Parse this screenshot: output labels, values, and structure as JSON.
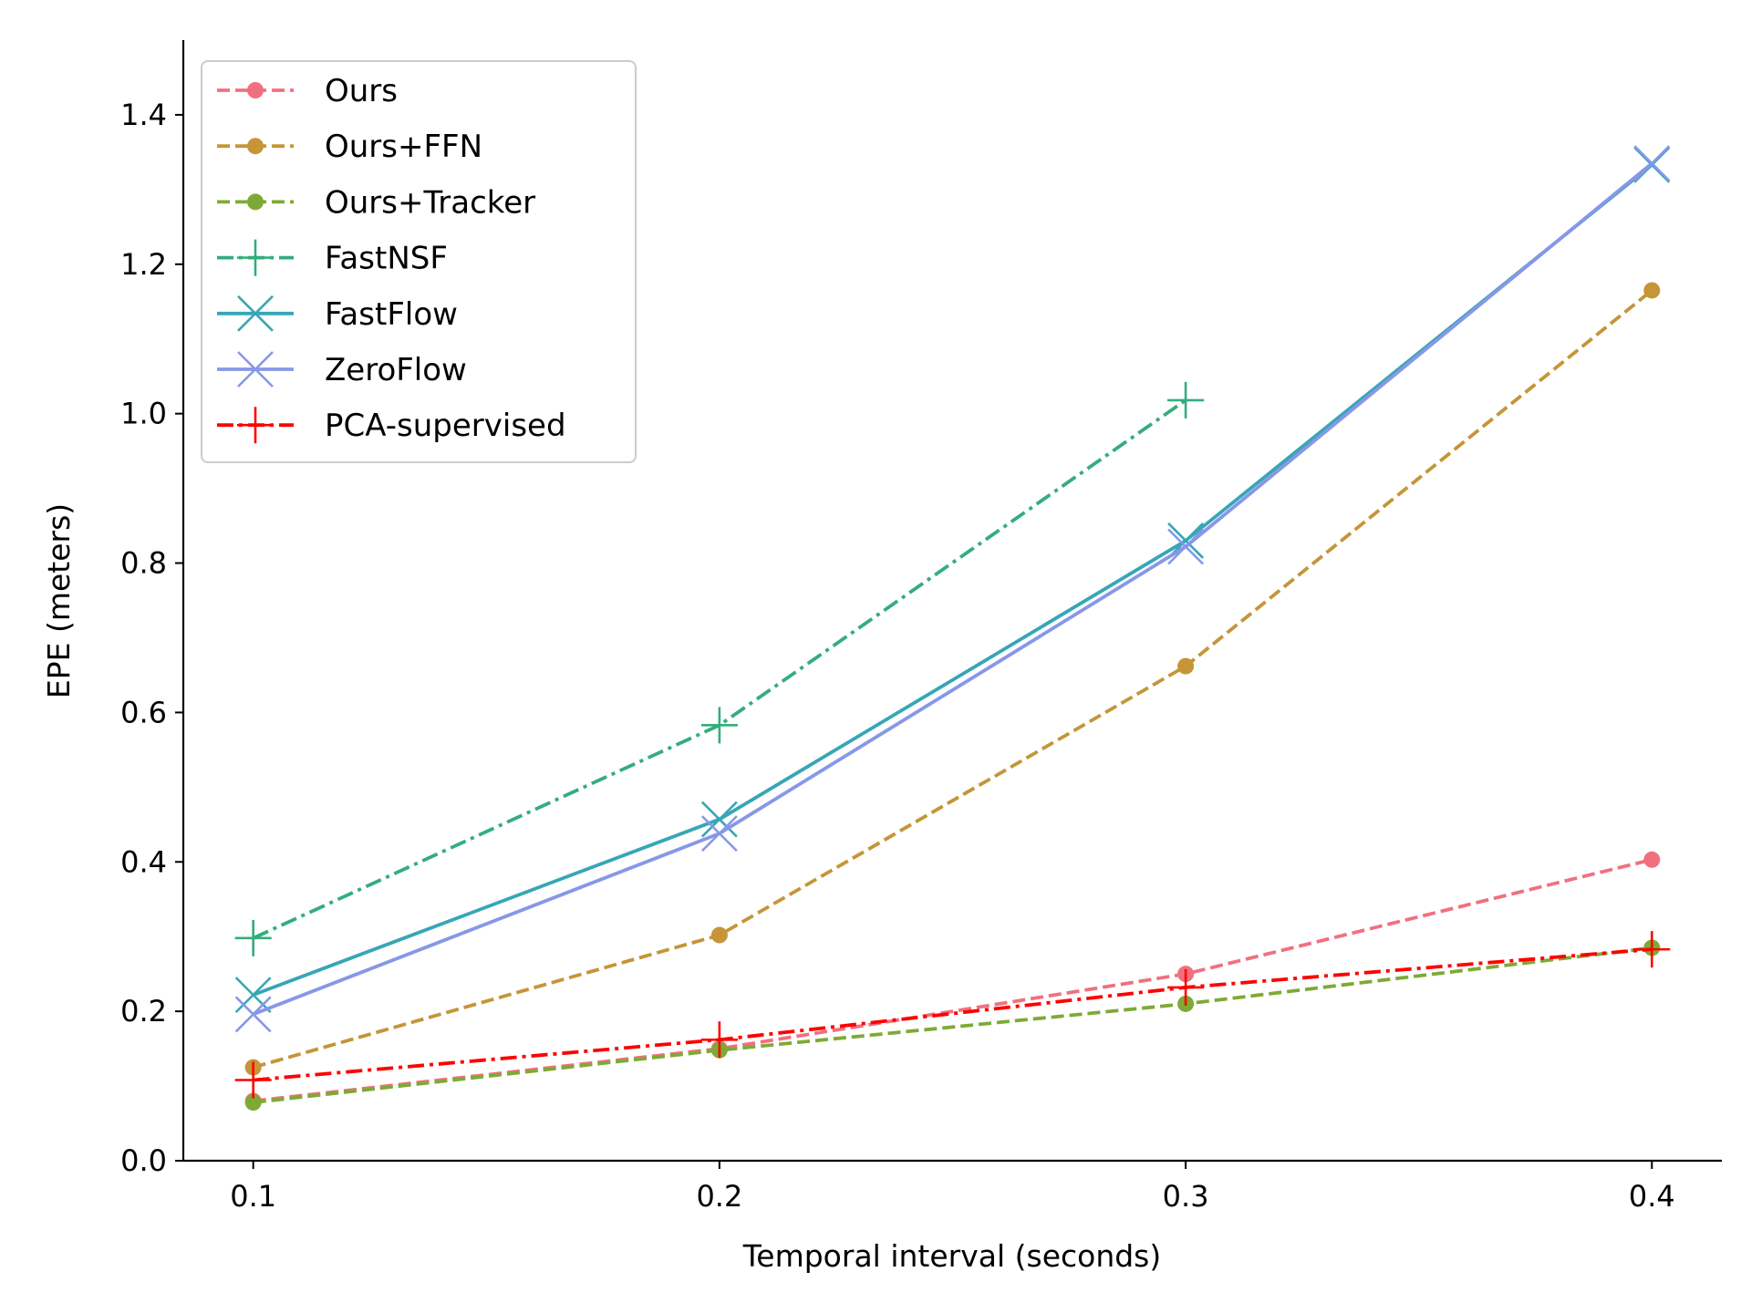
{
  "chart_data": {
    "type": "line",
    "xlabel": "Temporal interval (seconds)",
    "ylabel": "EPE (meters)",
    "xlim": [
      0.085,
      0.415
    ],
    "ylim": [
      0.0,
      1.5
    ],
    "xticks": [
      0.1,
      0.2,
      0.3,
      0.4
    ],
    "xtick_labels": [
      "0.1",
      "0.2",
      "0.3",
      "0.4"
    ],
    "yticks": [
      0.0,
      0.2,
      0.4,
      0.6,
      0.8,
      1.0,
      1.2,
      1.4
    ],
    "ytick_labels": [
      "0.0",
      "0.2",
      "0.4",
      "0.6",
      "0.8",
      "1.0",
      "1.2",
      "1.4"
    ],
    "grid": false,
    "legend_position": "top-left",
    "series": [
      {
        "name": "Ours",
        "color": "#f0707f",
        "dash": "dashed",
        "marker": "circle",
        "x": [
          0.1,
          0.2,
          0.3,
          0.4
        ],
        "y": [
          0.08,
          0.15,
          0.25,
          0.403
        ]
      },
      {
        "name": "Ours+FFN",
        "color": "#c59538",
        "dash": "dashed",
        "marker": "circle",
        "x": [
          0.1,
          0.2,
          0.3,
          0.4
        ],
        "y": [
          0.125,
          0.302,
          0.662,
          1.165
        ]
      },
      {
        "name": "Ours+Tracker",
        "color": "#7daa36",
        "dash": "dashed",
        "marker": "circle",
        "x": [
          0.1,
          0.2,
          0.3,
          0.4
        ],
        "y": [
          0.078,
          0.148,
          0.21,
          0.285
        ]
      },
      {
        "name": "FastNSF",
        "color": "#34ad7e",
        "dash": "dashdot",
        "marker": "plus",
        "x": [
          0.1,
          0.2,
          0.3
        ],
        "y": [
          0.298,
          0.583,
          1.018
        ]
      },
      {
        "name": "FastFlow",
        "color": "#37a6b6",
        "dash": "solid",
        "marker": "x",
        "x": [
          0.1,
          0.2,
          0.3,
          0.4
        ],
        "y": [
          0.222,
          0.457,
          0.83,
          1.333
        ]
      },
      {
        "name": "ZeroFlow",
        "color": "#8797e8",
        "dash": "solid",
        "marker": "x",
        "x": [
          0.1,
          0.2,
          0.3,
          0.4
        ],
        "y": [
          0.196,
          0.438,
          0.822,
          1.335
        ]
      },
      {
        "name": "PCA-supervised",
        "color": "#ff0000",
        "dash": "dashdot",
        "marker": "plus",
        "x": [
          0.1,
          0.2,
          0.3,
          0.4
        ],
        "y": [
          0.108,
          0.162,
          0.232,
          0.283
        ]
      }
    ]
  }
}
